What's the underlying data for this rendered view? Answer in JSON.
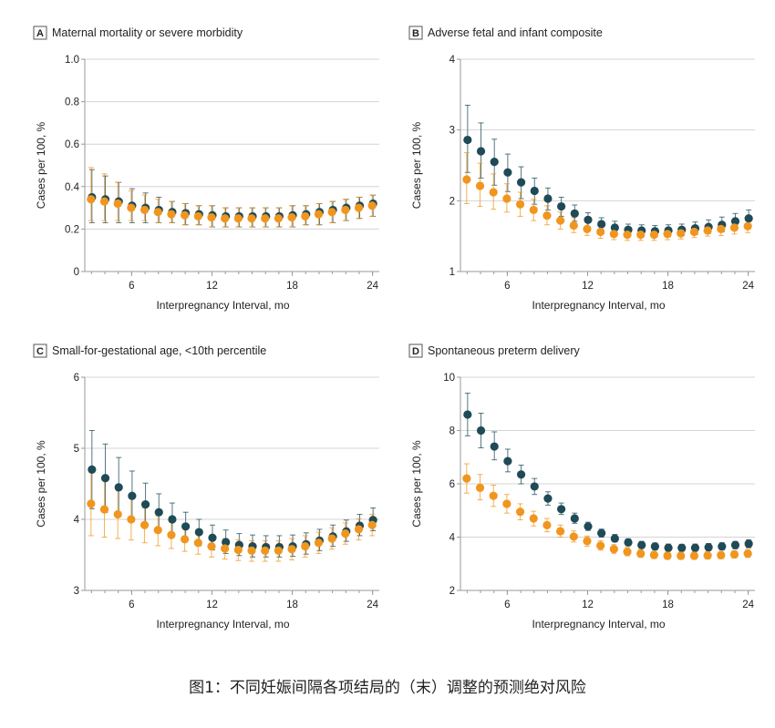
{
  "caption": "图1：不同妊娠间隔各项结局的（末）调整的预测绝对风险",
  "colors": {
    "series1": "#1f4a57",
    "series2": "#f0961e",
    "grid": "#d4d4d4",
    "axis": "#9a9a9a"
  },
  "chart_data": [
    {
      "letter": "A",
      "title": "Maternal mortality or severe morbidity",
      "type": "scatter",
      "xlabel": "Interpregnancy Interval, mo",
      "ylabel": "Cases per 100, %",
      "xlim": [
        2.5,
        24.5
      ],
      "ylim": [
        0,
        1.0
      ],
      "xticks": [
        6,
        12,
        18,
        24
      ],
      "yticks": [
        0,
        0.2,
        0.4,
        0.6,
        0.8,
        1.0
      ],
      "ytick_labels": [
        "0",
        "0.2",
        "0.4",
        "0.6",
        "0.8",
        "1.0"
      ],
      "x": [
        3,
        4,
        5,
        6,
        7,
        8,
        9,
        10,
        11,
        12,
        13,
        14,
        15,
        16,
        17,
        18,
        19,
        20,
        21,
        22,
        23,
        24
      ],
      "series": [
        {
          "name": "series1",
          "values": [
            0.35,
            0.34,
            0.33,
            0.31,
            0.3,
            0.29,
            0.28,
            0.275,
            0.27,
            0.265,
            0.26,
            0.26,
            0.26,
            0.26,
            0.26,
            0.265,
            0.27,
            0.28,
            0.29,
            0.3,
            0.31,
            0.32
          ],
          "lower": [
            0.23,
            0.23,
            0.23,
            0.23,
            0.23,
            0.23,
            0.23,
            0.22,
            0.22,
            0.21,
            0.21,
            0.21,
            0.21,
            0.21,
            0.21,
            0.21,
            0.22,
            0.22,
            0.23,
            0.24,
            0.25,
            0.26
          ],
          "upper": [
            0.48,
            0.45,
            0.42,
            0.39,
            0.37,
            0.35,
            0.33,
            0.32,
            0.31,
            0.31,
            0.3,
            0.3,
            0.3,
            0.3,
            0.3,
            0.31,
            0.31,
            0.32,
            0.33,
            0.34,
            0.35,
            0.36
          ]
        },
        {
          "name": "series2",
          "values": [
            0.34,
            0.33,
            0.32,
            0.3,
            0.29,
            0.28,
            0.27,
            0.265,
            0.26,
            0.255,
            0.25,
            0.25,
            0.25,
            0.25,
            0.25,
            0.255,
            0.26,
            0.27,
            0.28,
            0.29,
            0.3,
            0.31
          ],
          "lower": [
            0.24,
            0.24,
            0.24,
            0.24,
            0.24,
            0.23,
            0.23,
            0.22,
            0.22,
            0.21,
            0.21,
            0.21,
            0.21,
            0.21,
            0.21,
            0.21,
            0.22,
            0.22,
            0.23,
            0.24,
            0.25,
            0.26
          ],
          "upper": [
            0.49,
            0.46,
            0.42,
            0.38,
            0.36,
            0.34,
            0.33,
            0.32,
            0.31,
            0.31,
            0.3,
            0.3,
            0.3,
            0.3,
            0.3,
            0.31,
            0.31,
            0.32,
            0.33,
            0.34,
            0.35,
            0.36
          ]
        }
      ]
    },
    {
      "letter": "B",
      "title": "Adverse fetal and infant composite",
      "type": "scatter",
      "xlabel": "Interpregnancy Interval, mo",
      "ylabel": "Cases per 100, %",
      "xlim": [
        2.5,
        24.5
      ],
      "ylim": [
        1,
        4
      ],
      "xticks": [
        6,
        12,
        18,
        24
      ],
      "yticks": [
        1,
        2,
        3,
        4
      ],
      "ytick_labels": [
        "1",
        "2",
        "3",
        "4"
      ],
      "x": [
        3,
        4,
        5,
        6,
        7,
        8,
        9,
        10,
        11,
        12,
        13,
        14,
        15,
        16,
        17,
        18,
        19,
        20,
        21,
        22,
        23,
        24
      ],
      "series": [
        {
          "name": "series1",
          "values": [
            2.86,
            2.7,
            2.55,
            2.4,
            2.26,
            2.14,
            2.03,
            1.92,
            1.82,
            1.73,
            1.67,
            1.62,
            1.59,
            1.58,
            1.57,
            1.58,
            1.59,
            1.61,
            1.63,
            1.66,
            1.71,
            1.75
          ],
          "lower": [
            2.4,
            2.32,
            2.22,
            2.13,
            2.03,
            1.95,
            1.87,
            1.78,
            1.71,
            1.63,
            1.58,
            1.54,
            1.51,
            1.5,
            1.49,
            1.5,
            1.51,
            1.52,
            1.54,
            1.56,
            1.6,
            1.63
          ],
          "upper": [
            3.35,
            3.1,
            2.87,
            2.66,
            2.48,
            2.32,
            2.18,
            2.05,
            1.94,
            1.83,
            1.76,
            1.71,
            1.67,
            1.66,
            1.65,
            1.66,
            1.67,
            1.7,
            1.73,
            1.77,
            1.82,
            1.87
          ]
        },
        {
          "name": "series2",
          "values": [
            2.3,
            2.21,
            2.12,
            2.03,
            1.95,
            1.87,
            1.79,
            1.72,
            1.65,
            1.6,
            1.56,
            1.53,
            1.52,
            1.52,
            1.52,
            1.53,
            1.54,
            1.56,
            1.58,
            1.6,
            1.62,
            1.64
          ],
          "lower": [
            1.96,
            1.92,
            1.88,
            1.84,
            1.78,
            1.72,
            1.66,
            1.6,
            1.55,
            1.51,
            1.47,
            1.45,
            1.44,
            1.44,
            1.44,
            1.45,
            1.46,
            1.48,
            1.5,
            1.51,
            1.53,
            1.55
          ],
          "upper": [
            2.68,
            2.53,
            2.38,
            2.24,
            2.12,
            2.02,
            1.93,
            1.84,
            1.76,
            1.7,
            1.65,
            1.62,
            1.6,
            1.6,
            1.6,
            1.61,
            1.62,
            1.64,
            1.66,
            1.69,
            1.72,
            1.75
          ]
        }
      ]
    },
    {
      "letter": "C",
      "title": "Small-for-gestational age, <10th percentile",
      "type": "scatter",
      "xlabel": "Interpregnancy Interval, mo",
      "ylabel": "Cases per 100, %",
      "xlim": [
        2.5,
        24.5
      ],
      "ylim": [
        3,
        6
      ],
      "xticks": [
        6,
        12,
        18,
        24
      ],
      "yticks": [
        3,
        4,
        5,
        6
      ],
      "ytick_labels": [
        "3",
        "4",
        "5",
        "6"
      ],
      "x": [
        3,
        4,
        5,
        6,
        7,
        8,
        9,
        10,
        11,
        12,
        13,
        14,
        15,
        16,
        17,
        18,
        19,
        20,
        21,
        22,
        23,
        24
      ],
      "series": [
        {
          "name": "series1",
          "values": [
            4.7,
            4.58,
            4.45,
            4.33,
            4.21,
            4.1,
            4.0,
            3.9,
            3.82,
            3.74,
            3.68,
            3.64,
            3.62,
            3.61,
            3.61,
            3.62,
            3.65,
            3.7,
            3.76,
            3.83,
            3.91,
            3.99
          ],
          "lower": [
            4.15,
            4.1,
            4.05,
            4.0,
            3.92,
            3.84,
            3.77,
            3.7,
            3.63,
            3.57,
            3.52,
            3.49,
            3.47,
            3.47,
            3.47,
            3.48,
            3.51,
            3.56,
            3.62,
            3.69,
            3.77,
            3.84
          ],
          "upper": [
            5.25,
            5.06,
            4.87,
            4.68,
            4.51,
            4.36,
            4.23,
            4.1,
            4.0,
            3.92,
            3.85,
            3.8,
            3.78,
            3.77,
            3.77,
            3.78,
            3.81,
            3.86,
            3.92,
            3.99,
            4.07,
            4.16
          ]
        },
        {
          "name": "series2",
          "values": [
            4.22,
            4.14,
            4.07,
            4.0,
            3.92,
            3.85,
            3.78,
            3.72,
            3.67,
            3.62,
            3.59,
            3.57,
            3.56,
            3.56,
            3.56,
            3.58,
            3.62,
            3.67,
            3.73,
            3.8,
            3.86,
            3.92
          ],
          "lower": [
            3.77,
            3.75,
            3.73,
            3.71,
            3.67,
            3.63,
            3.59,
            3.55,
            3.51,
            3.47,
            3.44,
            3.42,
            3.41,
            3.41,
            3.41,
            3.43,
            3.47,
            3.52,
            3.58,
            3.65,
            3.71,
            3.77
          ],
          "upper": [
            4.7,
            4.56,
            4.42,
            4.29,
            4.16,
            4.05,
            3.96,
            3.89,
            3.82,
            3.77,
            3.73,
            3.71,
            3.7,
            3.7,
            3.7,
            3.73,
            3.77,
            3.82,
            3.88,
            3.95,
            4.01,
            4.07
          ]
        }
      ]
    },
    {
      "letter": "D",
      "title": "Spontaneous preterm delivery",
      "type": "scatter",
      "xlabel": "Interpregnancy Interval, mo",
      "ylabel": "Cases per 100, %",
      "xlim": [
        2.5,
        24.5
      ],
      "ylim": [
        2,
        10
      ],
      "xticks": [
        6,
        12,
        18,
        24
      ],
      "yticks": [
        2,
        4,
        6,
        8,
        10
      ],
      "ytick_labels": [
        "2",
        "4",
        "6",
        "8",
        "10"
      ],
      "x": [
        3,
        4,
        5,
        6,
        7,
        8,
        9,
        10,
        11,
        12,
        13,
        14,
        15,
        16,
        17,
        18,
        19,
        20,
        21,
        22,
        23,
        24
      ],
      "series": [
        {
          "name": "series1",
          "values": [
            8.6,
            8.0,
            7.4,
            6.85,
            6.35,
            5.9,
            5.45,
            5.05,
            4.7,
            4.4,
            4.15,
            3.95,
            3.8,
            3.7,
            3.65,
            3.6,
            3.6,
            3.6,
            3.62,
            3.65,
            3.7,
            3.75
          ],
          "lower": [
            7.8,
            7.35,
            6.9,
            6.45,
            6.0,
            5.6,
            5.2,
            4.85,
            4.52,
            4.25,
            4.0,
            3.82,
            3.68,
            3.58,
            3.52,
            3.48,
            3.47,
            3.47,
            3.49,
            3.52,
            3.56,
            3.6
          ],
          "upper": [
            9.4,
            8.65,
            7.95,
            7.3,
            6.7,
            6.2,
            5.7,
            5.28,
            4.9,
            4.56,
            4.3,
            4.1,
            3.94,
            3.84,
            3.78,
            3.74,
            3.73,
            3.74,
            3.76,
            3.79,
            3.84,
            3.9
          ]
        },
        {
          "name": "series2",
          "values": [
            6.2,
            5.85,
            5.55,
            5.25,
            4.95,
            4.7,
            4.45,
            4.22,
            4.02,
            3.85,
            3.68,
            3.55,
            3.45,
            3.38,
            3.33,
            3.3,
            3.3,
            3.3,
            3.31,
            3.32,
            3.35,
            3.38
          ],
          "lower": [
            5.65,
            5.4,
            5.15,
            4.9,
            4.65,
            4.42,
            4.2,
            4.0,
            3.82,
            3.66,
            3.51,
            3.39,
            3.3,
            3.24,
            3.2,
            3.17,
            3.17,
            3.17,
            3.18,
            3.19,
            3.22,
            3.24
          ],
          "upper": [
            6.75,
            6.35,
            5.95,
            5.6,
            5.25,
            4.97,
            4.7,
            4.45,
            4.23,
            4.04,
            3.86,
            3.72,
            3.61,
            3.53,
            3.47,
            3.44,
            3.44,
            3.44,
            3.45,
            3.46,
            3.49,
            3.53
          ]
        }
      ]
    }
  ]
}
